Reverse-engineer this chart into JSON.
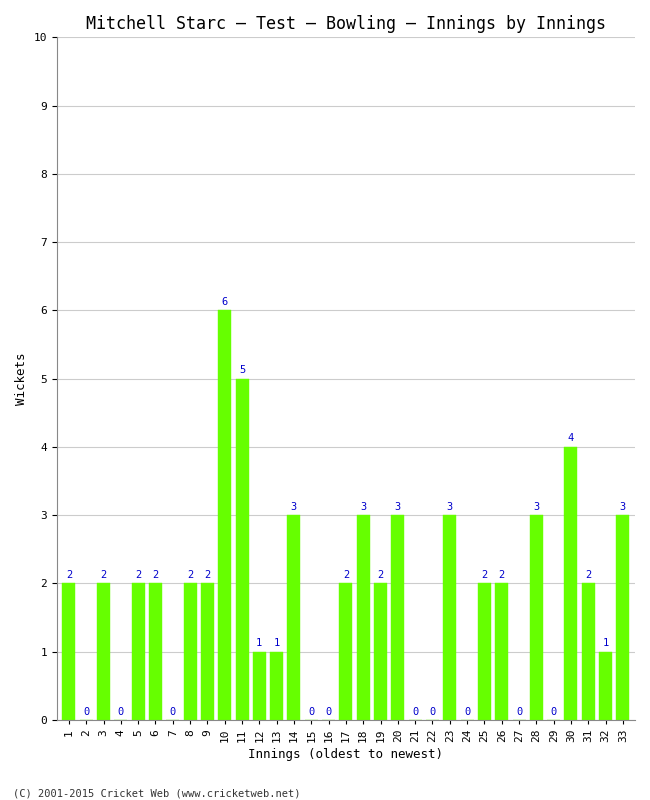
{
  "title": "Mitchell Starc – Test – Bowling – Innings by Innings",
  "xlabel": "Innings (oldest to newest)",
  "ylabel": "Wickets",
  "innings": [
    1,
    2,
    3,
    4,
    5,
    6,
    7,
    8,
    9,
    10,
    11,
    12,
    13,
    14,
    15,
    16,
    17,
    18,
    19,
    20,
    21,
    22,
    23,
    24,
    25,
    26,
    27,
    28,
    29,
    30,
    31,
    32,
    33
  ],
  "wickets": [
    2,
    0,
    2,
    0,
    2,
    2,
    0,
    2,
    2,
    6,
    5,
    1,
    1,
    3,
    0,
    0,
    2,
    3,
    2,
    3,
    0,
    0,
    3,
    0,
    2,
    2,
    0,
    3,
    0,
    4,
    2,
    1,
    3
  ],
  "bar_color": "#66ff00",
  "bar_edge_color": "#66ff00",
  "label_color": "#0000cc",
  "background_color": "#ffffff",
  "ylim": [
    0,
    10
  ],
  "yticks": [
    0,
    1,
    2,
    3,
    4,
    5,
    6,
    7,
    8,
    9,
    10
  ],
  "grid_color": "#cccccc",
  "title_fontsize": 12,
  "axis_label_fontsize": 9,
  "tick_fontsize": 8,
  "bar_label_fontsize": 7.5,
  "footer": "(C) 2001-2015 Cricket Web (www.cricketweb.net)"
}
